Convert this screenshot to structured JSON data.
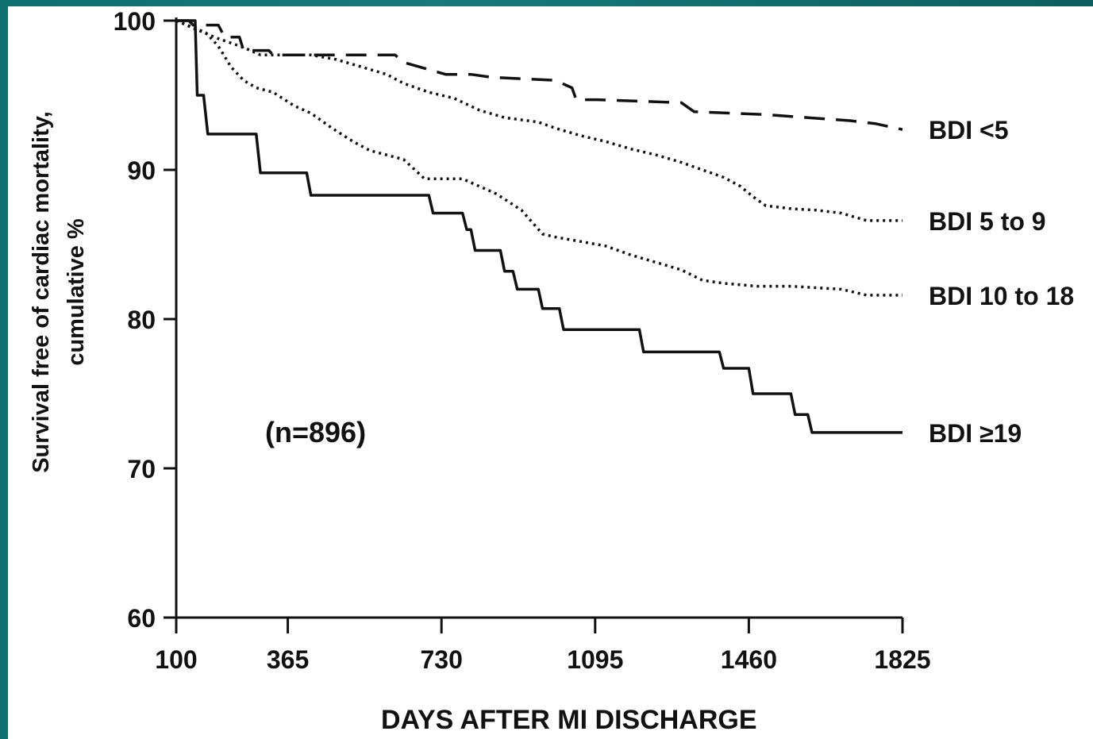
{
  "chart_data": {
    "type": "line",
    "ylabel": [
      "Survival free of cardiac mortality,",
      "cumulative %"
    ],
    "xlabel": "DAYS AFTER MI DISCHARGE",
    "annotation": "(n=896)",
    "xlim": [
      100,
      1825
    ],
    "ylim": [
      60,
      100
    ],
    "x_ticks": [
      100,
      365,
      730,
      1095,
      1460,
      1825
    ],
    "y_ticks": [
      60,
      70,
      80,
      90,
      100
    ],
    "grid": false,
    "legend": "direct-labels-right",
    "series": [
      {
        "name": "BDI <5",
        "style": "dashed",
        "points": [
          [
            100,
            100
          ],
          [
            130,
            100
          ],
          [
            140,
            99.7
          ],
          [
            200,
            99.7
          ],
          [
            215,
            98.9
          ],
          [
            250,
            98.9
          ],
          [
            260,
            98
          ],
          [
            320,
            98
          ],
          [
            330,
            97.7
          ],
          [
            560,
            97.7
          ],
          [
            620,
            97.7
          ],
          [
            640,
            97.2
          ],
          [
            740,
            96.4
          ],
          [
            800,
            96.4
          ],
          [
            850,
            96.2
          ],
          [
            1000,
            96
          ],
          [
            1040,
            95.5
          ],
          [
            1050,
            94.7
          ],
          [
            1100,
            94.7
          ],
          [
            1200,
            94.6
          ],
          [
            1300,
            94.5
          ],
          [
            1330,
            93.9
          ],
          [
            1500,
            93.7
          ],
          [
            1700,
            93.3
          ],
          [
            1760,
            93.1
          ],
          [
            1825,
            92.7
          ]
        ]
      },
      {
        "name": "BDI 5 to 9",
        "style": "dotted",
        "points": [
          [
            100,
            100
          ],
          [
            140,
            99.5
          ],
          [
            200,
            98.8
          ],
          [
            260,
            98.2
          ],
          [
            300,
            97.7
          ],
          [
            420,
            97.7
          ],
          [
            480,
            97.4
          ],
          [
            540,
            96.9
          ],
          [
            600,
            96.4
          ],
          [
            640,
            95.8
          ],
          [
            700,
            95.2
          ],
          [
            760,
            94.8
          ],
          [
            820,
            94
          ],
          [
            880,
            93.5
          ],
          [
            960,
            93.2
          ],
          [
            1000,
            92.8
          ],
          [
            1060,
            92.3
          ],
          [
            1120,
            91.9
          ],
          [
            1180,
            91.4
          ],
          [
            1240,
            91
          ],
          [
            1300,
            90.5
          ],
          [
            1350,
            90
          ],
          [
            1400,
            89.5
          ],
          [
            1440,
            88.9
          ],
          [
            1470,
            88.2
          ],
          [
            1500,
            87.6
          ],
          [
            1560,
            87.4
          ],
          [
            1620,
            87.3
          ],
          [
            1680,
            87.1
          ],
          [
            1740,
            86.6
          ],
          [
            1825,
            86.6
          ]
        ]
      },
      {
        "name": "BDI 10 to 18",
        "style": "dotted",
        "points": [
          [
            100,
            100
          ],
          [
            170,
            99.2
          ],
          [
            200,
            98.3
          ],
          [
            230,
            96.9
          ],
          [
            260,
            96
          ],
          [
            290,
            95.5
          ],
          [
            330,
            95.2
          ],
          [
            380,
            94.3
          ],
          [
            420,
            93.8
          ],
          [
            470,
            92.8
          ],
          [
            520,
            91.9
          ],
          [
            560,
            91.3
          ],
          [
            640,
            90.7
          ],
          [
            690,
            89.4
          ],
          [
            780,
            89.4
          ],
          [
            860,
            88.4
          ],
          [
            920,
            87.3
          ],
          [
            970,
            85.7
          ],
          [
            1000,
            85.5
          ],
          [
            1060,
            85.2
          ],
          [
            1120,
            84.9
          ],
          [
            1180,
            84.3
          ],
          [
            1240,
            83.8
          ],
          [
            1300,
            83.3
          ],
          [
            1350,
            82.6
          ],
          [
            1400,
            82.4
          ],
          [
            1480,
            82.2
          ],
          [
            1560,
            82.2
          ],
          [
            1680,
            82
          ],
          [
            1740,
            81.6
          ],
          [
            1825,
            81.6
          ]
        ]
      },
      {
        "name": "BDI ≥19",
        "style": "solid",
        "points": [
          [
            100,
            100
          ],
          [
            145,
            100
          ],
          [
            150,
            95
          ],
          [
            165,
            95
          ],
          [
            175,
            92.4
          ],
          [
            290,
            92.4
          ],
          [
            300,
            89.8
          ],
          [
            410,
            89.8
          ],
          [
            420,
            88.3
          ],
          [
            700,
            88.3
          ],
          [
            710,
            87.1
          ],
          [
            780,
            87.1
          ],
          [
            790,
            86
          ],
          [
            800,
            86
          ],
          [
            810,
            84.6
          ],
          [
            870,
            84.6
          ],
          [
            880,
            83.2
          ],
          [
            900,
            83.2
          ],
          [
            910,
            82
          ],
          [
            960,
            82
          ],
          [
            970,
            80.7
          ],
          [
            1010,
            80.7
          ],
          [
            1020,
            79.3
          ],
          [
            1200,
            79.3
          ],
          [
            1210,
            77.8
          ],
          [
            1390,
            77.8
          ],
          [
            1400,
            76.7
          ],
          [
            1460,
            76.7
          ],
          [
            1470,
            75
          ],
          [
            1560,
            75
          ],
          [
            1570,
            73.6
          ],
          [
            1600,
            73.6
          ],
          [
            1610,
            72.4
          ],
          [
            1825,
            72.4
          ]
        ]
      }
    ],
    "legend_labels": [
      {
        "text": "BDI <5",
        "y": 92.7
      },
      {
        "text": "BDI 5 to 9",
        "y": 86.6
      },
      {
        "text": "BDI 10 to 18",
        "y": 81.6
      },
      {
        "text": "BDI ≥19",
        "y": 72.4
      }
    ]
  }
}
